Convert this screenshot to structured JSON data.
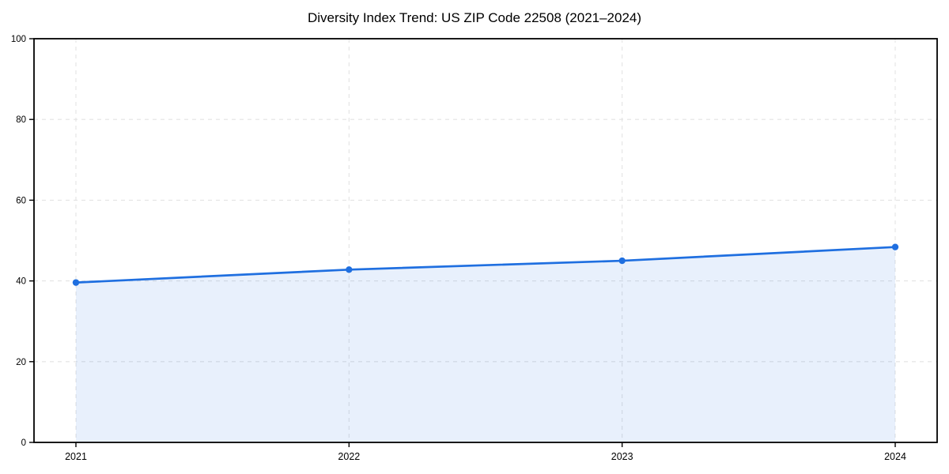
{
  "chart_data": {
    "type": "line",
    "title": "Diversity Index Trend: US ZIP Code 22508 (2021–2024)",
    "categories": [
      "2021",
      "2022",
      "2023",
      "2024"
    ],
    "series": [
      {
        "name": "Diversity Index",
        "values": [
          39.6,
          42.8,
          45.0,
          48.4
        ]
      }
    ],
    "xlabel": "",
    "ylabel": "",
    "ylim": [
      0,
      100
    ],
    "yticks": [
      0,
      20,
      40,
      60,
      80,
      100
    ],
    "grid": true,
    "grid_style": "dashed",
    "legend_position": "none",
    "area_fill": true,
    "colors": {
      "line": "#1f6fe0",
      "marker": "#1f6fe0",
      "fill": "rgba(31, 111, 224, 0.10)",
      "grid": "#e3e3e3",
      "axis": "#000000",
      "tick_label": "#000000",
      "background": "#ffffff"
    }
  }
}
